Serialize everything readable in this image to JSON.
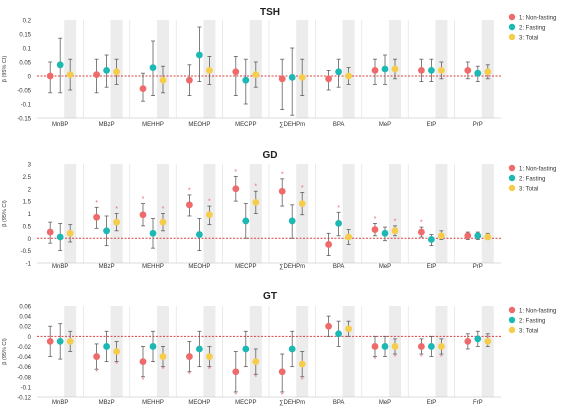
{
  "chart_data": [
    {
      "type": "scatter",
      "title": "TSH",
      "ylabel": "β (95% CI)",
      "ylim": [
        -0.15,
        0.2
      ],
      "yticks": [
        -0.15,
        -0.1,
        -0.05,
        0,
        0.05,
        0.1,
        0.15,
        0.2
      ],
      "ytick_labels": [
        "-0.15",
        "-0.1",
        "-0.05",
        "0",
        "0.05",
        "0.1",
        "0.15",
        "0.2"
      ],
      "grid": false,
      "reference_line": 0,
      "legend_position": "right",
      "categories": [
        "MnBP",
        "MBzP",
        "MEHHP",
        "MEOHP",
        "MECPP",
        "∑DEHPm",
        "BPA",
        "MeP",
        "EtP",
        "PrP"
      ],
      "series": [
        {
          "name": "1: Non-fasting",
          "values": [
            0.0,
            0.005,
            -0.045,
            -0.015,
            0.015,
            -0.01,
            -0.01,
            0.02,
            0.02,
            0.02
          ],
          "ci_low": [
            -0.06,
            -0.06,
            -0.09,
            -0.07,
            -0.07,
            -0.12,
            -0.05,
            -0.03,
            -0.02,
            -0.01
          ],
          "ci_high": [
            0.05,
            0.06,
            0.01,
            0.04,
            0.07,
            0.06,
            0.02,
            0.06,
            0.06,
            0.05
          ]
        },
        {
          "name": "2: Fasting",
          "values": [
            0.04,
            0.02,
            0.03,
            0.075,
            -0.015,
            -0.005,
            0.015,
            0.025,
            0.02,
            0.01
          ],
          "ci_low": [
            -0.06,
            -0.04,
            -0.07,
            -0.02,
            -0.1,
            -0.14,
            -0.04,
            -0.03,
            -0.02,
            -0.02
          ],
          "ci_high": [
            0.135,
            0.075,
            0.125,
            0.175,
            0.06,
            0.1,
            0.06,
            0.075,
            0.06,
            0.035
          ]
        },
        {
          "name": "3: Total",
          "values": [
            0.005,
            0.015,
            -0.015,
            0.02,
            0.005,
            -0.005,
            0.0,
            0.025,
            0.02,
            0.015
          ],
          "ci_low": [
            -0.05,
            -0.03,
            -0.06,
            -0.03,
            -0.04,
            -0.07,
            -0.03,
            -0.01,
            -0.01,
            -0.01
          ],
          "ci_high": [
            0.06,
            0.06,
            0.035,
            0.07,
            0.05,
            0.06,
            0.03,
            0.06,
            0.05,
            0.04
          ]
        }
      ]
    },
    {
      "type": "scatter",
      "title": "GD",
      "ylabel": "β (95% CI)",
      "ylim": [
        -1,
        3
      ],
      "yticks": [
        -1,
        -0.5,
        0,
        0.5,
        1,
        1.5,
        2,
        2.5,
        3
      ],
      "ytick_labels": [
        "-1",
        "-0.5",
        "0",
        "0.5",
        "1",
        "1.5",
        "2",
        "2.5",
        "3"
      ],
      "grid": false,
      "reference_line": 0,
      "legend_position": "right",
      "categories": [
        "MnBP",
        "MBzP",
        "MEHHP",
        "MEOHP",
        "MECPP",
        "∑DEHPm",
        "BPA",
        "MeP",
        "EtP",
        "PrP"
      ],
      "significance_marker": "*",
      "series": [
        {
          "name": "1: Non-fasting",
          "values": [
            0.25,
            0.85,
            0.95,
            1.35,
            2.0,
            1.9,
            -0.25,
            0.35,
            0.25,
            0.1
          ],
          "ci_low": [
            -0.2,
            0.4,
            0.5,
            0.9,
            1.5,
            1.3,
            -0.7,
            0.1,
            0.05,
            -0.05
          ],
          "ci_high": [
            0.65,
            1.25,
            1.4,
            1.75,
            2.5,
            2.4,
            0.2,
            0.6,
            0.45,
            0.25
          ],
          "significant": [
            false,
            true,
            true,
            true,
            true,
            true,
            false,
            true,
            true,
            false
          ]
        },
        {
          "name": "2: Fasting",
          "values": [
            0.05,
            0.3,
            0.2,
            0.15,
            0.7,
            0.7,
            0.6,
            0.2,
            -0.05,
            0.1
          ],
          "ci_low": [
            -0.5,
            -0.3,
            -0.4,
            -0.5,
            0.0,
            0.0,
            0.1,
            -0.1,
            -0.3,
            -0.05
          ],
          "ci_high": [
            0.6,
            0.9,
            0.8,
            0.8,
            1.4,
            1.35,
            1.05,
            0.45,
            0.15,
            0.25
          ],
          "significant": [
            false,
            false,
            false,
            false,
            false,
            false,
            true,
            false,
            false,
            false
          ]
        },
        {
          "name": "3: Total",
          "values": [
            0.2,
            0.65,
            0.65,
            0.95,
            1.45,
            1.4,
            0.05,
            0.3,
            0.1,
            0.05
          ],
          "ci_low": [
            -0.15,
            0.3,
            0.3,
            0.55,
            1.0,
            0.95,
            -0.25,
            0.1,
            -0.05,
            -0.05
          ],
          "ci_high": [
            0.55,
            1.0,
            1.0,
            1.3,
            1.9,
            1.85,
            0.35,
            0.5,
            0.3,
            0.2
          ],
          "significant": [
            false,
            true,
            true,
            true,
            true,
            true,
            false,
            true,
            false,
            false
          ]
        }
      ]
    },
    {
      "type": "scatter",
      "title": "GT",
      "ylabel": "β (95% CI)",
      "ylim": [
        -0.12,
        0.06
      ],
      "yticks": [
        -0.12,
        -0.1,
        -0.08,
        -0.06,
        -0.04,
        -0.02,
        0,
        0.02,
        0.04,
        0.06
      ],
      "ytick_labels": [
        "-0.12",
        "-0.1",
        "-0.08",
        "-0.06",
        "-0.04",
        "-0.02",
        "0",
        "0.02",
        "0.04",
        "0.06"
      ],
      "grid": false,
      "reference_line": 0,
      "legend_position": "right",
      "categories": [
        "MnBP",
        "MBzP",
        "MEHHP",
        "MEOHP",
        "MECPP",
        "∑DEHPm",
        "BPA",
        "MeP",
        "EtP",
        "FrP"
      ],
      "significance_marker": "*",
      "series": [
        {
          "name": "1: Non-fasting",
          "values": [
            -0.01,
            -0.04,
            -0.05,
            -0.04,
            -0.07,
            -0.07,
            0.02,
            -0.02,
            -0.02,
            -0.01
          ],
          "ci_low": [
            -0.04,
            -0.065,
            -0.08,
            -0.07,
            -0.11,
            -0.11,
            0.0,
            -0.04,
            -0.035,
            -0.025
          ],
          "ci_high": [
            0.02,
            -0.015,
            -0.02,
            -0.01,
            -0.03,
            -0.035,
            0.04,
            0.0,
            -0.005,
            0.005
          ],
          "significant": [
            false,
            true,
            true,
            true,
            true,
            true,
            false,
            true,
            true,
            false
          ]
        },
        {
          "name": "2: Fasting",
          "values": [
            -0.01,
            -0.02,
            -0.02,
            -0.025,
            -0.025,
            -0.025,
            0.005,
            -0.02,
            -0.02,
            -0.005
          ],
          "ci_low": [
            -0.045,
            -0.05,
            -0.05,
            -0.06,
            -0.06,
            -0.06,
            -0.02,
            -0.04,
            -0.04,
            -0.02
          ],
          "ci_high": [
            0.025,
            0.01,
            0.01,
            0.01,
            0.01,
            0.01,
            0.03,
            0.0,
            0.0,
            0.01
          ],
          "significant": [
            false,
            false,
            false,
            false,
            false,
            false,
            false,
            false,
            false,
            false
          ]
        },
        {
          "name": "3: Total",
          "values": [
            -0.01,
            -0.03,
            -0.04,
            -0.04,
            -0.05,
            -0.055,
            0.015,
            -0.02,
            -0.02,
            -0.01
          ],
          "ci_low": [
            -0.03,
            -0.05,
            -0.06,
            -0.06,
            -0.075,
            -0.08,
            0.0,
            -0.035,
            -0.035,
            -0.02
          ],
          "ci_high": [
            0.01,
            -0.01,
            -0.02,
            -0.02,
            -0.025,
            -0.03,
            0.03,
            -0.005,
            -0.005,
            0.005
          ],
          "significant": [
            false,
            true,
            true,
            true,
            true,
            true,
            false,
            true,
            true,
            false
          ]
        }
      ]
    }
  ],
  "colors": {
    "series": [
      "#ef6a6a",
      "#1cb8b3",
      "#f5cd4a"
    ],
    "errorbar": "#606060",
    "reference_line": "#d94040",
    "band": "#ececec",
    "separator": "#dcdcdc",
    "axis_text": "#333333"
  }
}
